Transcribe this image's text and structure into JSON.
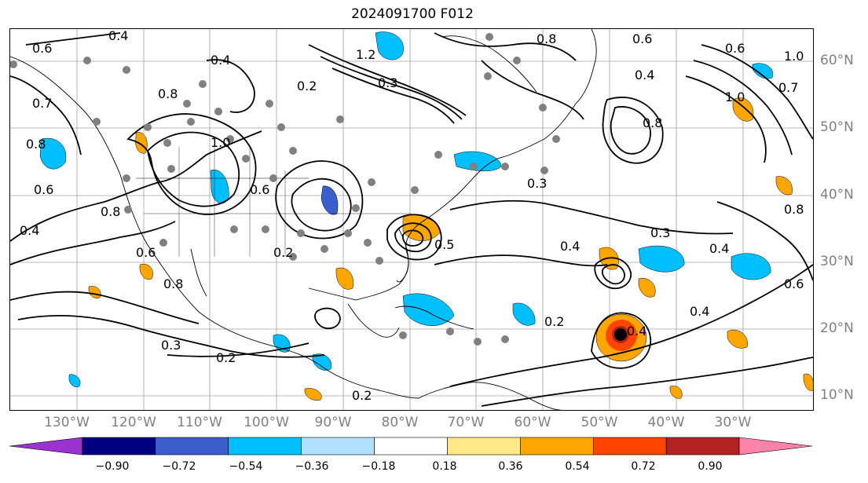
{
  "title": "2024091700 F012",
  "longitude_labels": [
    "130°W",
    "120°W",
    "110°W",
    "100°W",
    "90°W",
    "80°W",
    "70°W",
    "60°W",
    "50°W",
    "40°W",
    "30°W"
  ],
  "latitude_labels": [
    "60°N",
    "50°N",
    "40°N",
    "30°N",
    "20°N",
    "10°N"
  ],
  "colorbar": {
    "ticks": [
      "−0.90",
      "−0.72",
      "−0.54",
      "−0.36",
      "−0.18",
      "0.18",
      "0.36",
      "0.54",
      "0.72",
      "0.90"
    ],
    "colors": [
      "#9a32cd",
      "#000080",
      "#3a5fcd",
      "#00bfff",
      "#b0e2ff",
      "#ffffff",
      "#ffe886",
      "#ffa500",
      "#ff4500",
      "#b22222",
      "#ff82ab"
    ]
  },
  "contour_labels": [
    "0.4",
    "0.6",
    "0.8",
    "0.4",
    "1.2",
    "0.2",
    "0.3",
    "0.6",
    "0.8",
    "0.4",
    "0.8",
    "1.0",
    "0.7",
    "0.8",
    "0.6",
    "1.0",
    "0.8",
    "0.6",
    "0.2",
    "0.4",
    "0.3",
    "0.5",
    "0.2",
    "0.3",
    "0.8",
    "0.6",
    "0.4",
    "0.3",
    "0.4",
    "0.2",
    "0.4",
    "0.2",
    "1.0",
    "0.7",
    "0.6",
    "0.8",
    "0.4",
    "0.6"
  ],
  "colors": {
    "contour": "#000000",
    "station_dots": "#808080",
    "positive_shading": "#ffa500",
    "negative_shading": "#00bfff",
    "storm_center": "#000000"
  }
}
